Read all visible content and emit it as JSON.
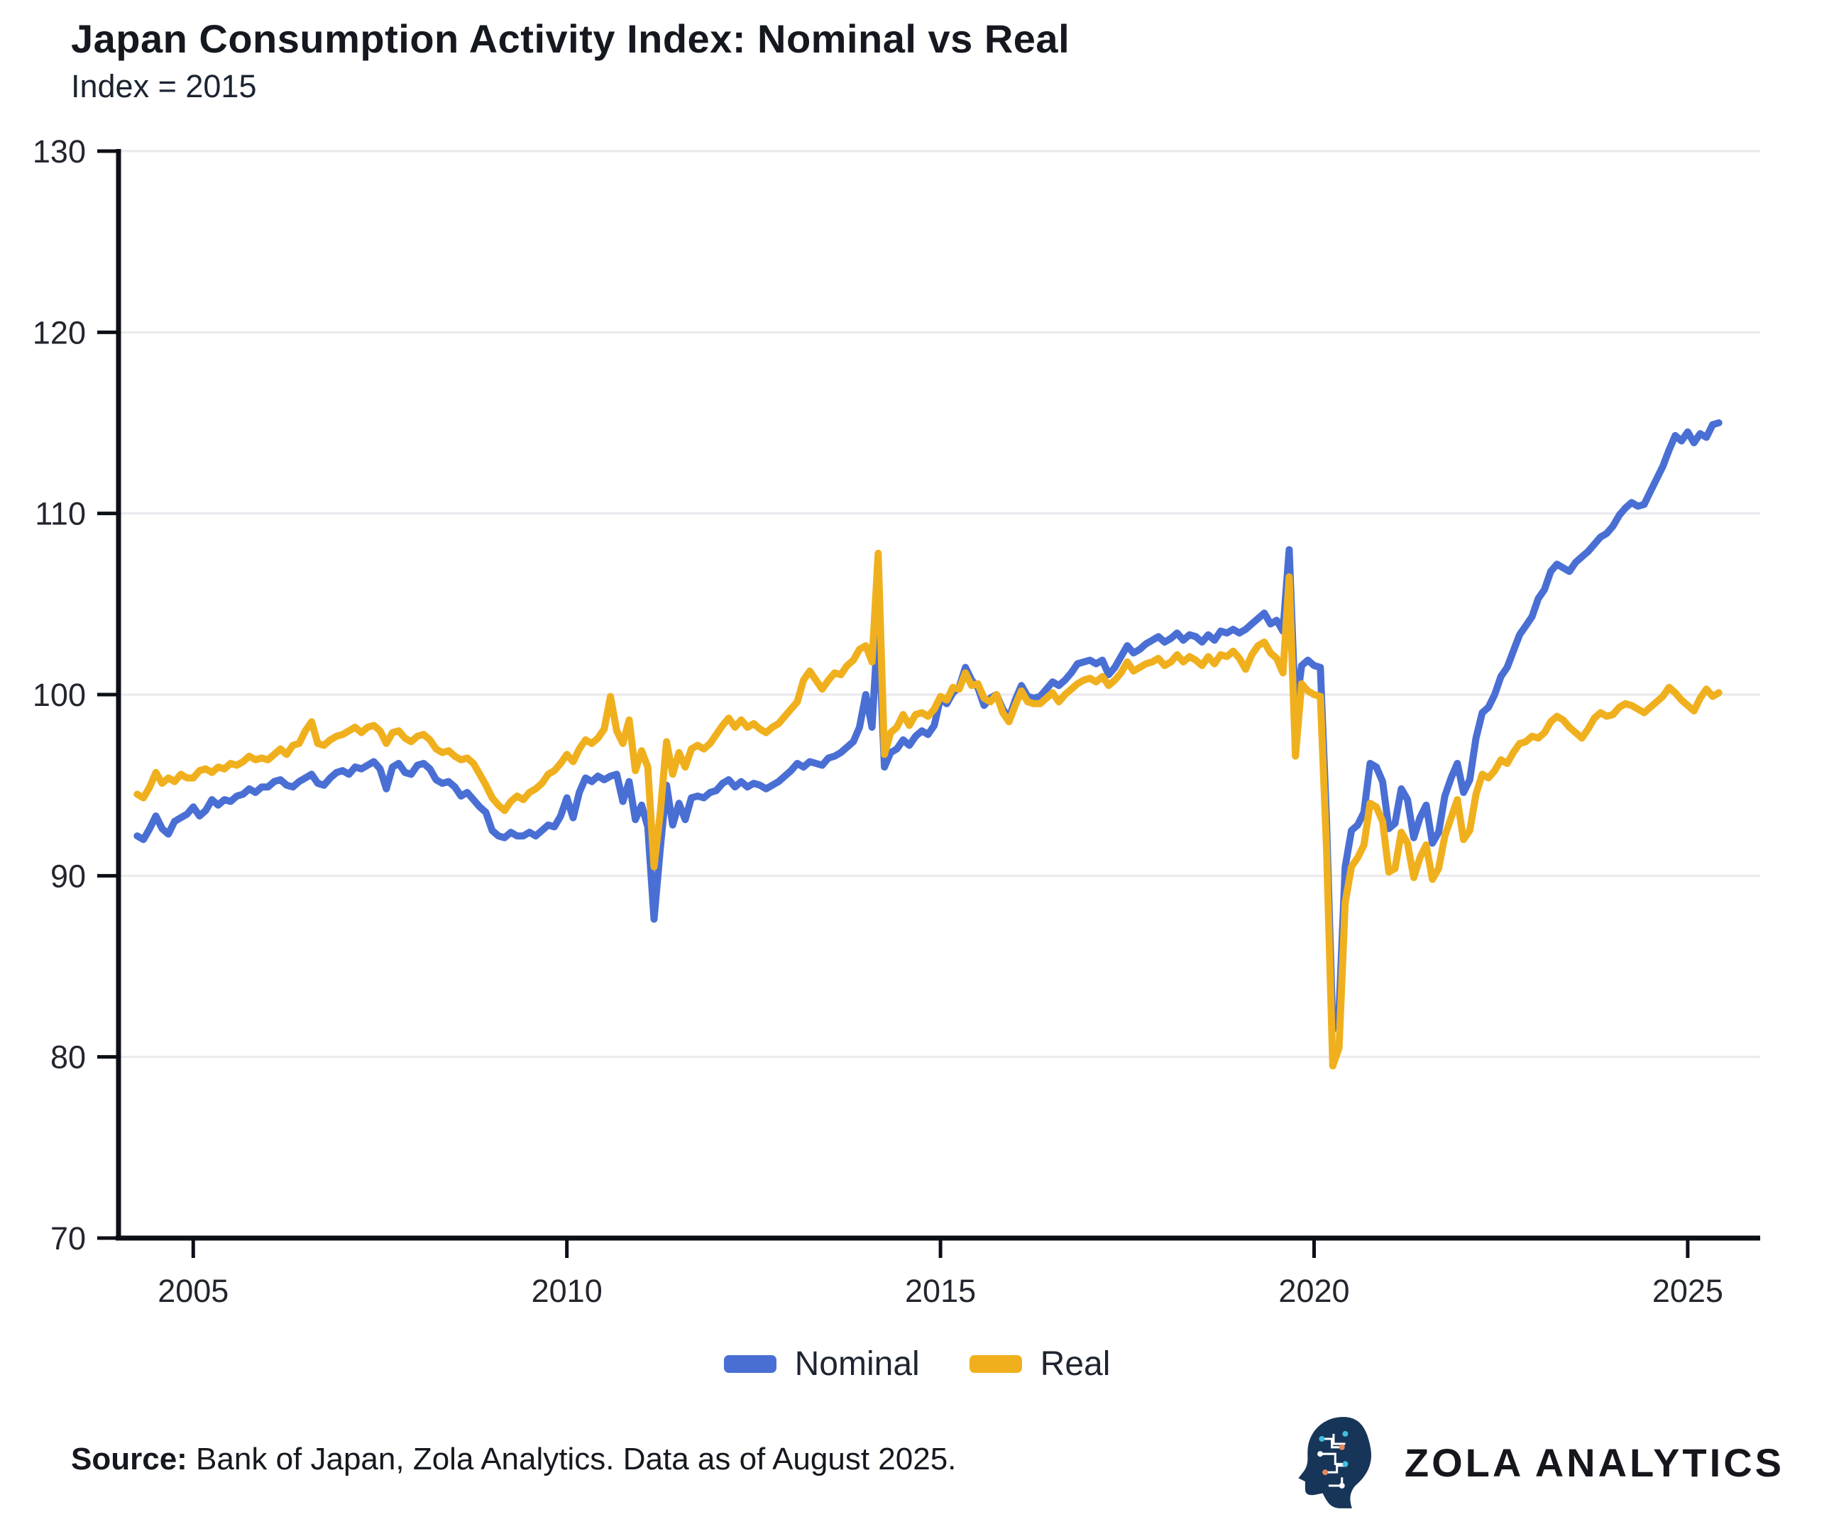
{
  "header": {
    "title": "Japan Consumption Activity Index: Nominal vs Real",
    "subtitle": "Index = 2015"
  },
  "footer": {
    "source_label": "Source:",
    "source_text": " Bank of Japan, Zola Analytics. Data as of August 2025.",
    "brand": "ZOLA ANALYTICS"
  },
  "colors": {
    "nominal": "#4a6fd4",
    "real": "#f0b01e",
    "grid": "#e9e9ee",
    "axis": "#0c0f16",
    "logo_navy": "#173558",
    "logo_cyan": "#3fc0e0",
    "logo_orange": "#e8875c"
  },
  "chart_data": {
    "type": "line",
    "title": "Japan Consumption Activity Index: Nominal vs Real",
    "subtitle": "Index = 2015",
    "xlabel": "",
    "ylabel": "",
    "ylim": [
      70,
      130
    ],
    "xlim": [
      2004,
      2025.97
    ],
    "y_ticks": [
      70,
      80,
      90,
      100,
      110,
      120,
      130
    ],
    "x_ticks": [
      2005,
      2010,
      2015,
      2020,
      2025
    ],
    "grid": "horizontal",
    "legend_position": "bottom-center",
    "x_start": 2004.25,
    "x_step": 0.0833333,
    "x_start_label": "2004-04",
    "x_end_label": "2025-06",
    "series": [
      {
        "name": "Nominal",
        "color": "#4a6fd4",
        "values": [
          92.2,
          92.0,
          92.6,
          93.3,
          92.6,
          92.3,
          93.0,
          93.2,
          93.4,
          93.8,
          93.3,
          93.6,
          94.2,
          93.9,
          94.2,
          94.1,
          94.4,
          94.5,
          94.8,
          94.6,
          94.9,
          94.9,
          95.2,
          95.3,
          95.0,
          94.9,
          95.2,
          95.4,
          95.6,
          95.1,
          95.0,
          95.4,
          95.7,
          95.8,
          95.6,
          96.0,
          95.9,
          96.1,
          96.3,
          95.9,
          94.8,
          96.0,
          96.2,
          95.7,
          95.6,
          96.1,
          96.2,
          95.9,
          95.3,
          95.1,
          95.2,
          94.9,
          94.4,
          94.6,
          94.2,
          93.8,
          93.5,
          92.5,
          92.2,
          92.1,
          92.4,
          92.2,
          92.2,
          92.4,
          92.2,
          92.5,
          92.8,
          92.7,
          93.3,
          94.3,
          93.2,
          94.6,
          95.4,
          95.2,
          95.5,
          95.3,
          95.5,
          95.6,
          94.1,
          95.2,
          93.1,
          93.9,
          92.7,
          87.6,
          91.5,
          95.0,
          92.8,
          94.0,
          93.1,
          94.3,
          94.4,
          94.3,
          94.6,
          94.7,
          95.1,
          95.3,
          94.9,
          95.2,
          94.9,
          95.1,
          95.0,
          94.8,
          95.0,
          95.2,
          95.5,
          95.8,
          96.2,
          96.0,
          96.3,
          96.2,
          96.1,
          96.5,
          96.6,
          96.8,
          97.1,
          97.4,
          98.2,
          100.0,
          98.2,
          104.0,
          96.0,
          96.8,
          97.0,
          97.5,
          97.2,
          97.7,
          98.0,
          97.8,
          98.3,
          99.8,
          99.5,
          100.1,
          100.4,
          101.5,
          100.8,
          100.4,
          99.4,
          99.8,
          100.0,
          99.2,
          98.7,
          99.7,
          100.5,
          99.9,
          99.8,
          99.9,
          100.3,
          100.7,
          100.5,
          100.8,
          101.2,
          101.7,
          101.8,
          101.9,
          101.7,
          101.9,
          101.1,
          101.5,
          102.1,
          102.7,
          102.3,
          102.5,
          102.8,
          103.0,
          103.2,
          102.9,
          103.1,
          103.4,
          103.0,
          103.3,
          103.2,
          102.9,
          103.3,
          103.0,
          103.5,
          103.4,
          103.6,
          103.4,
          103.6,
          103.9,
          104.2,
          104.5,
          103.9,
          104.1,
          103.5,
          108.0,
          99.0,
          101.6,
          101.9,
          101.6,
          101.5,
          93.0,
          81.5,
          82.5,
          90.5,
          92.5,
          92.8,
          93.5,
          96.2,
          96.0,
          95.2,
          92.6,
          92.9,
          94.8,
          94.2,
          92.1,
          93.2,
          93.9,
          91.8,
          92.4,
          94.4,
          95.4,
          96.2,
          94.6,
          95.3,
          97.6,
          99.0,
          99.3,
          100.0,
          101.0,
          101.5,
          102.4,
          103.3,
          103.8,
          104.3,
          105.3,
          105.8,
          106.8,
          107.2,
          107.0,
          106.8,
          107.3,
          107.6,
          107.9,
          108.3,
          108.7,
          108.9,
          109.3,
          109.9,
          110.3,
          110.6,
          110.4,
          110.5,
          111.2,
          111.9,
          112.6,
          113.5,
          114.3,
          114.0,
          114.5,
          113.9,
          114.4,
          114.2,
          114.9,
          115.0
        ]
      },
      {
        "name": "Real",
        "color": "#f0b01e",
        "values": [
          94.5,
          94.3,
          94.9,
          95.7,
          95.1,
          95.4,
          95.2,
          95.6,
          95.4,
          95.4,
          95.8,
          95.9,
          95.7,
          96.0,
          95.9,
          96.2,
          96.1,
          96.3,
          96.6,
          96.4,
          96.5,
          96.4,
          96.7,
          97.0,
          96.7,
          97.2,
          97.3,
          98.0,
          98.5,
          97.3,
          97.2,
          97.5,
          97.7,
          97.8,
          98.0,
          98.2,
          97.9,
          98.2,
          98.3,
          98.0,
          97.3,
          97.9,
          98.0,
          97.6,
          97.4,
          97.7,
          97.8,
          97.5,
          97.0,
          96.8,
          96.9,
          96.6,
          96.4,
          96.5,
          96.2,
          95.6,
          95.0,
          94.3,
          93.9,
          93.6,
          94.1,
          94.4,
          94.2,
          94.6,
          94.8,
          95.1,
          95.6,
          95.8,
          96.2,
          96.7,
          96.3,
          97.0,
          97.5,
          97.3,
          97.6,
          98.1,
          99.9,
          98.0,
          97.3,
          98.6,
          95.8,
          96.9,
          96.0,
          90.5,
          93.5,
          97.4,
          95.6,
          96.8,
          96.0,
          97.0,
          97.2,
          97.0,
          97.3,
          97.8,
          98.3,
          98.7,
          98.2,
          98.6,
          98.2,
          98.4,
          98.1,
          97.9,
          98.2,
          98.4,
          98.8,
          99.2,
          99.6,
          100.8,
          101.3,
          100.8,
          100.3,
          100.8,
          101.2,
          101.1,
          101.6,
          101.9,
          102.5,
          102.7,
          101.8,
          107.8,
          96.7,
          97.9,
          98.2,
          98.9,
          98.3,
          98.9,
          99.0,
          98.8,
          99.2,
          99.9,
          99.7,
          100.4,
          100.3,
          101.2,
          100.5,
          100.6,
          99.8,
          99.6,
          100.0,
          99.0,
          98.5,
          99.4,
          100.2,
          99.6,
          99.5,
          99.5,
          99.8,
          100.1,
          99.6,
          100.0,
          100.3,
          100.6,
          100.8,
          100.9,
          100.7,
          101.0,
          100.5,
          100.8,
          101.2,
          101.8,
          101.3,
          101.5,
          101.7,
          101.8,
          102.0,
          101.6,
          101.8,
          102.2,
          101.8,
          102.1,
          101.9,
          101.6,
          102.1,
          101.7,
          102.2,
          102.1,
          102.4,
          102.0,
          101.4,
          102.2,
          102.7,
          102.9,
          102.3,
          102.0,
          101.2,
          106.5,
          96.6,
          100.6,
          100.2,
          100.0,
          99.9,
          91.5,
          79.5,
          80.5,
          88.5,
          90.5,
          91.0,
          91.7,
          94.0,
          93.8,
          93.0,
          90.2,
          90.4,
          92.4,
          91.8,
          89.9,
          91.0,
          91.7,
          89.8,
          90.4,
          92.2,
          93.2,
          94.2,
          92.0,
          92.5,
          94.5,
          95.6,
          95.4,
          95.8,
          96.4,
          96.2,
          96.8,
          97.3,
          97.4,
          97.7,
          97.6,
          97.9,
          98.5,
          98.8,
          98.6,
          98.2,
          97.9,
          97.6,
          98.1,
          98.7,
          99.0,
          98.8,
          98.9,
          99.3,
          99.5,
          99.4,
          99.2,
          99.0,
          99.3,
          99.6,
          99.9,
          100.4,
          100.1,
          99.7,
          99.4,
          99.1,
          99.8,
          100.3,
          99.9,
          100.1
        ]
      }
    ]
  }
}
